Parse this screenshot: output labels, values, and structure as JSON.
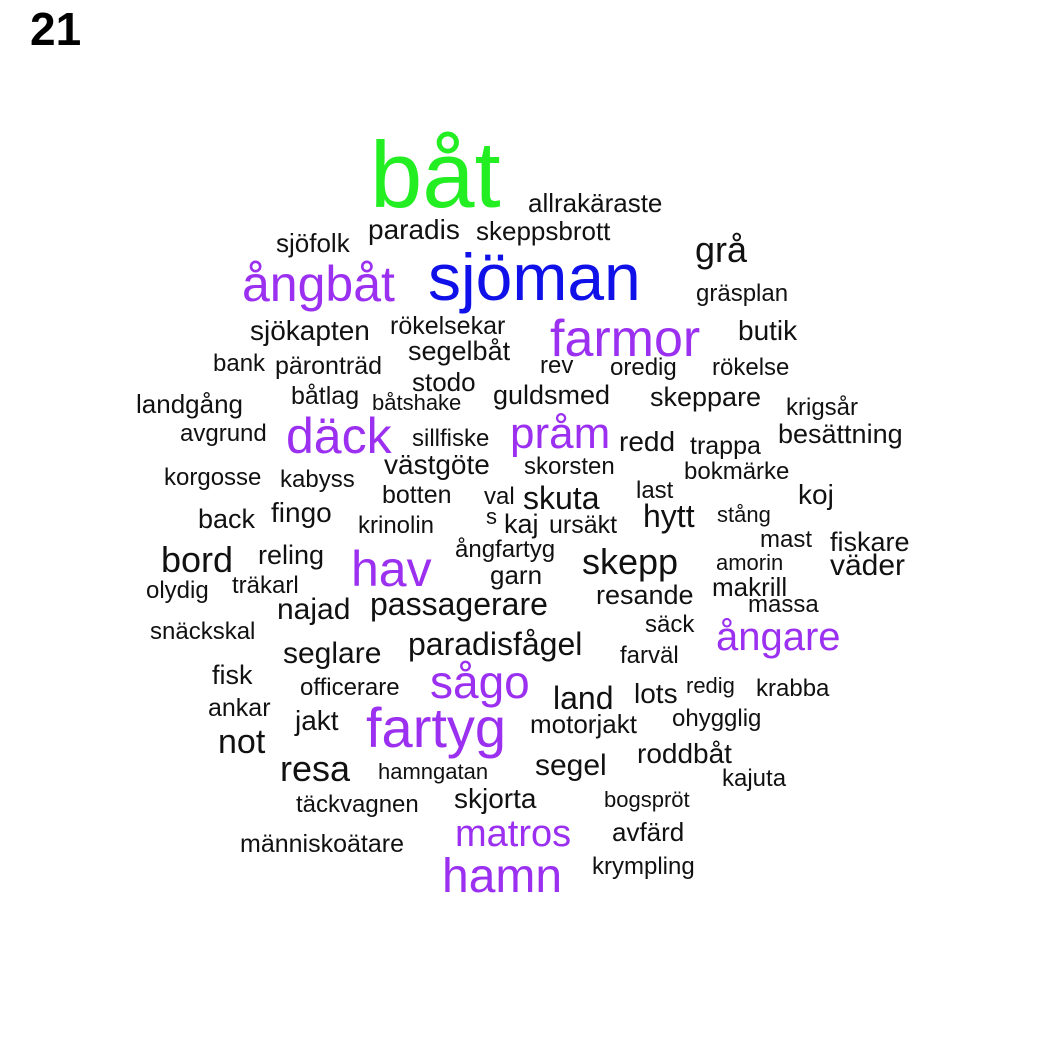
{
  "figure_number": "21",
  "colors": {
    "green": "#22ee22",
    "blue": "#1010e8",
    "purple": "#9b30f0",
    "black": "#111111"
  },
  "words": [
    {
      "t": "båt",
      "c": "green"
    },
    {
      "t": "allrakäraste",
      "c": "black"
    },
    {
      "t": "paradis",
      "c": "black"
    },
    {
      "t": "skeppsbrott",
      "c": "black"
    },
    {
      "t": "sjöfolk",
      "c": "black"
    },
    {
      "t": "grå",
      "c": "black"
    },
    {
      "t": "ångbåt",
      "c": "purple"
    },
    {
      "t": "sjöman",
      "c": "blue"
    },
    {
      "t": "gräsplan",
      "c": "black"
    },
    {
      "t": "sjökapten",
      "c": "black"
    },
    {
      "t": "rökelsekar",
      "c": "black"
    },
    {
      "t": "farmor",
      "c": "purple"
    },
    {
      "t": "butik",
      "c": "black"
    },
    {
      "t": "segelbåt",
      "c": "black"
    },
    {
      "t": "bank",
      "c": "black"
    },
    {
      "t": "päronträd",
      "c": "black"
    },
    {
      "t": "rev",
      "c": "black"
    },
    {
      "t": "oredig",
      "c": "black"
    },
    {
      "t": "rökelse",
      "c": "black"
    },
    {
      "t": "stodo",
      "c": "black"
    },
    {
      "t": "landgång",
      "c": "black"
    },
    {
      "t": "båtlag",
      "c": "black"
    },
    {
      "t": "båtshake",
      "c": "black"
    },
    {
      "t": "guldsmed",
      "c": "black"
    },
    {
      "t": "skeppare",
      "c": "black"
    },
    {
      "t": "krigsår",
      "c": "black"
    },
    {
      "t": "avgrund",
      "c": "black"
    },
    {
      "t": "däck",
      "c": "purple"
    },
    {
      "t": "sillfiske",
      "c": "black"
    },
    {
      "t": "pråm",
      "c": "purple"
    },
    {
      "t": "redd",
      "c": "black"
    },
    {
      "t": "trappa",
      "c": "black"
    },
    {
      "t": "besättning",
      "c": "black"
    },
    {
      "t": "västgöte",
      "c": "black"
    },
    {
      "t": "skorsten",
      "c": "black"
    },
    {
      "t": "bokmärke",
      "c": "black"
    },
    {
      "t": "korgosse",
      "c": "black"
    },
    {
      "t": "kabyss",
      "c": "black"
    },
    {
      "t": "botten",
      "c": "black"
    },
    {
      "t": "val",
      "c": "black"
    },
    {
      "t": "skuta",
      "c": "black"
    },
    {
      "t": "last",
      "c": "black"
    },
    {
      "t": "koj",
      "c": "black"
    },
    {
      "t": "back",
      "c": "black"
    },
    {
      "t": "fingo",
      "c": "black"
    },
    {
      "t": "s",
      "c": "black"
    },
    {
      "t": "krinolin",
      "c": "black"
    },
    {
      "t": "kaj",
      "c": "black"
    },
    {
      "t": "ursäkt",
      "c": "black"
    },
    {
      "t": "hytt",
      "c": "black"
    },
    {
      "t": "stång",
      "c": "black"
    },
    {
      "t": "mast",
      "c": "black"
    },
    {
      "t": "fiskare",
      "c": "black"
    },
    {
      "t": "bord",
      "c": "black"
    },
    {
      "t": "reling",
      "c": "black"
    },
    {
      "t": "hav",
      "c": "purple"
    },
    {
      "t": "ångfartyg",
      "c": "black"
    },
    {
      "t": "skepp",
      "c": "black"
    },
    {
      "t": "amorin",
      "c": "black"
    },
    {
      "t": "väder",
      "c": "black"
    },
    {
      "t": "garn",
      "c": "black"
    },
    {
      "t": "olydig",
      "c": "black"
    },
    {
      "t": "träkarl",
      "c": "black"
    },
    {
      "t": "makrill",
      "c": "black"
    },
    {
      "t": "najad",
      "c": "black"
    },
    {
      "t": "passagerare",
      "c": "black"
    },
    {
      "t": "resande",
      "c": "black"
    },
    {
      "t": "massa",
      "c": "black"
    },
    {
      "t": "snäckskal",
      "c": "black"
    },
    {
      "t": "säck",
      "c": "black"
    },
    {
      "t": "ångare",
      "c": "purple"
    },
    {
      "t": "paradisfågel",
      "c": "black"
    },
    {
      "t": "seglare",
      "c": "black"
    },
    {
      "t": "farväl",
      "c": "black"
    },
    {
      "t": "fisk",
      "c": "black"
    },
    {
      "t": "sågo",
      "c": "purple"
    },
    {
      "t": "officerare",
      "c": "black"
    },
    {
      "t": "land",
      "c": "black"
    },
    {
      "t": "lots",
      "c": "black"
    },
    {
      "t": "redig",
      "c": "black"
    },
    {
      "t": "krabba",
      "c": "black"
    },
    {
      "t": "ankar",
      "c": "black"
    },
    {
      "t": "jakt",
      "c": "black"
    },
    {
      "t": "fartyg",
      "c": "purple"
    },
    {
      "t": "motorjakt",
      "c": "black"
    },
    {
      "t": "ohygglig",
      "c": "black"
    },
    {
      "t": "not",
      "c": "black"
    },
    {
      "t": "roddbåt",
      "c": "black"
    },
    {
      "t": "resa",
      "c": "black"
    },
    {
      "t": "hamngatan",
      "c": "black"
    },
    {
      "t": "segel",
      "c": "black"
    },
    {
      "t": "kajuta",
      "c": "black"
    },
    {
      "t": "täckvagnen",
      "c": "black"
    },
    {
      "t": "skjorta",
      "c": "black"
    },
    {
      "t": "bogspröt",
      "c": "black"
    },
    {
      "t": "matros",
      "c": "purple"
    },
    {
      "t": "avfärd",
      "c": "black"
    },
    {
      "t": "människoätare",
      "c": "black"
    },
    {
      "t": "hamn",
      "c": "purple"
    },
    {
      "t": "krympling",
      "c": "black"
    }
  ]
}
